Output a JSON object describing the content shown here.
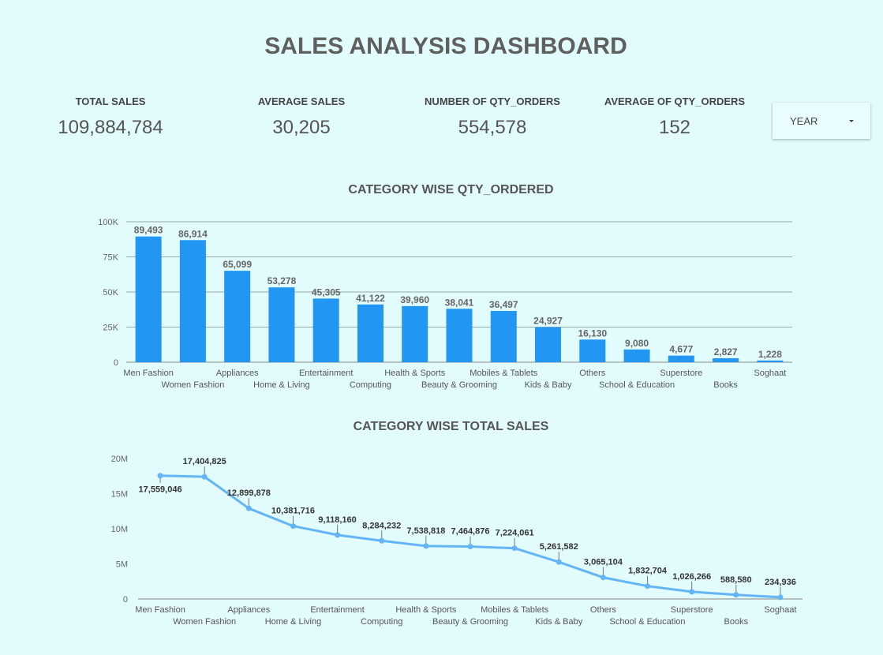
{
  "title": "SALES ANALYSIS DASHBOARD",
  "kpis": [
    {
      "label": "TOTAL SALES",
      "value": "109,884,784"
    },
    {
      "label": "AVERAGE SALES",
      "value": "30,205"
    },
    {
      "label": "NUMBER OF QTY_ORDERS",
      "value": "554,578"
    },
    {
      "label": "AVERAGE OF QTY_ORDERS",
      "value": "152"
    }
  ],
  "filter": {
    "label": "YEAR"
  },
  "colors": {
    "bar": "#2196f3",
    "line": "#64b5f6",
    "background": "#e2fbfd"
  },
  "chart_data": [
    {
      "type": "bar",
      "title": "CATEGORY WISE QTY_ORDERED",
      "categories": [
        "Men Fashion",
        "Women Fashion",
        "Appliances",
        "Home & Living",
        "Entertainment",
        "Computing",
        "Health & Sports",
        "Beauty & Grooming",
        "Mobiles & Tablets",
        "Kids & Baby",
        "Others",
        "School & Education",
        "Superstore",
        "Books",
        "Soghaat"
      ],
      "values": [
        89493,
        86914,
        65099,
        53278,
        45305,
        41122,
        39960,
        38041,
        36497,
        24927,
        16130,
        9080,
        4677,
        2827,
        1228
      ],
      "value_labels": [
        "89,493",
        "86,914",
        "65,099",
        "53,278",
        "45,305",
        "41,122",
        "39,960",
        "38,041",
        "36,497",
        "24,927",
        "16,130",
        "9,080",
        "4,677",
        "2,827",
        "1,228"
      ],
      "y_ticks": [
        0,
        25000,
        50000,
        75000,
        100000
      ],
      "y_tick_labels": [
        "0",
        "25K",
        "50K",
        "75K",
        "100K"
      ],
      "ylim": [
        0,
        100000
      ],
      "grid": true
    },
    {
      "type": "line",
      "title": "CATEGORY WISE TOTAL SALES",
      "categories": [
        "Men Fashion",
        "Women Fashion",
        "Appliances",
        "Home & Living",
        "Entertainment",
        "Computing",
        "Health & Sports",
        "Beauty & Grooming",
        "Mobiles & Tablets",
        "Kids & Baby",
        "Others",
        "School & Education",
        "Superstore",
        "Books",
        "Soghaat"
      ],
      "values": [
        17559046,
        17404825,
        12899878,
        10381716,
        9118160,
        8284232,
        7538818,
        7464876,
        7224061,
        5261582,
        3065104,
        1832704,
        1026266,
        588580,
        234936
      ],
      "value_labels": [
        "17,559,046",
        "17,404,825",
        "12,899,878",
        "10,381,716",
        "9,118,160",
        "8,284,232",
        "7,538,818",
        "7,464,876",
        "7,224,061",
        "5,261,582",
        "3,065,104",
        "1,832,704",
        "1,026,266",
        "588,580",
        "234,936"
      ],
      "y_ticks": [
        0,
        5000000,
        10000000,
        15000000,
        20000000
      ],
      "y_tick_labels": [
        "0",
        "5M",
        "10M",
        "15M",
        "20M"
      ],
      "ylim": [
        0,
        20000000
      ],
      "grid": false
    }
  ]
}
